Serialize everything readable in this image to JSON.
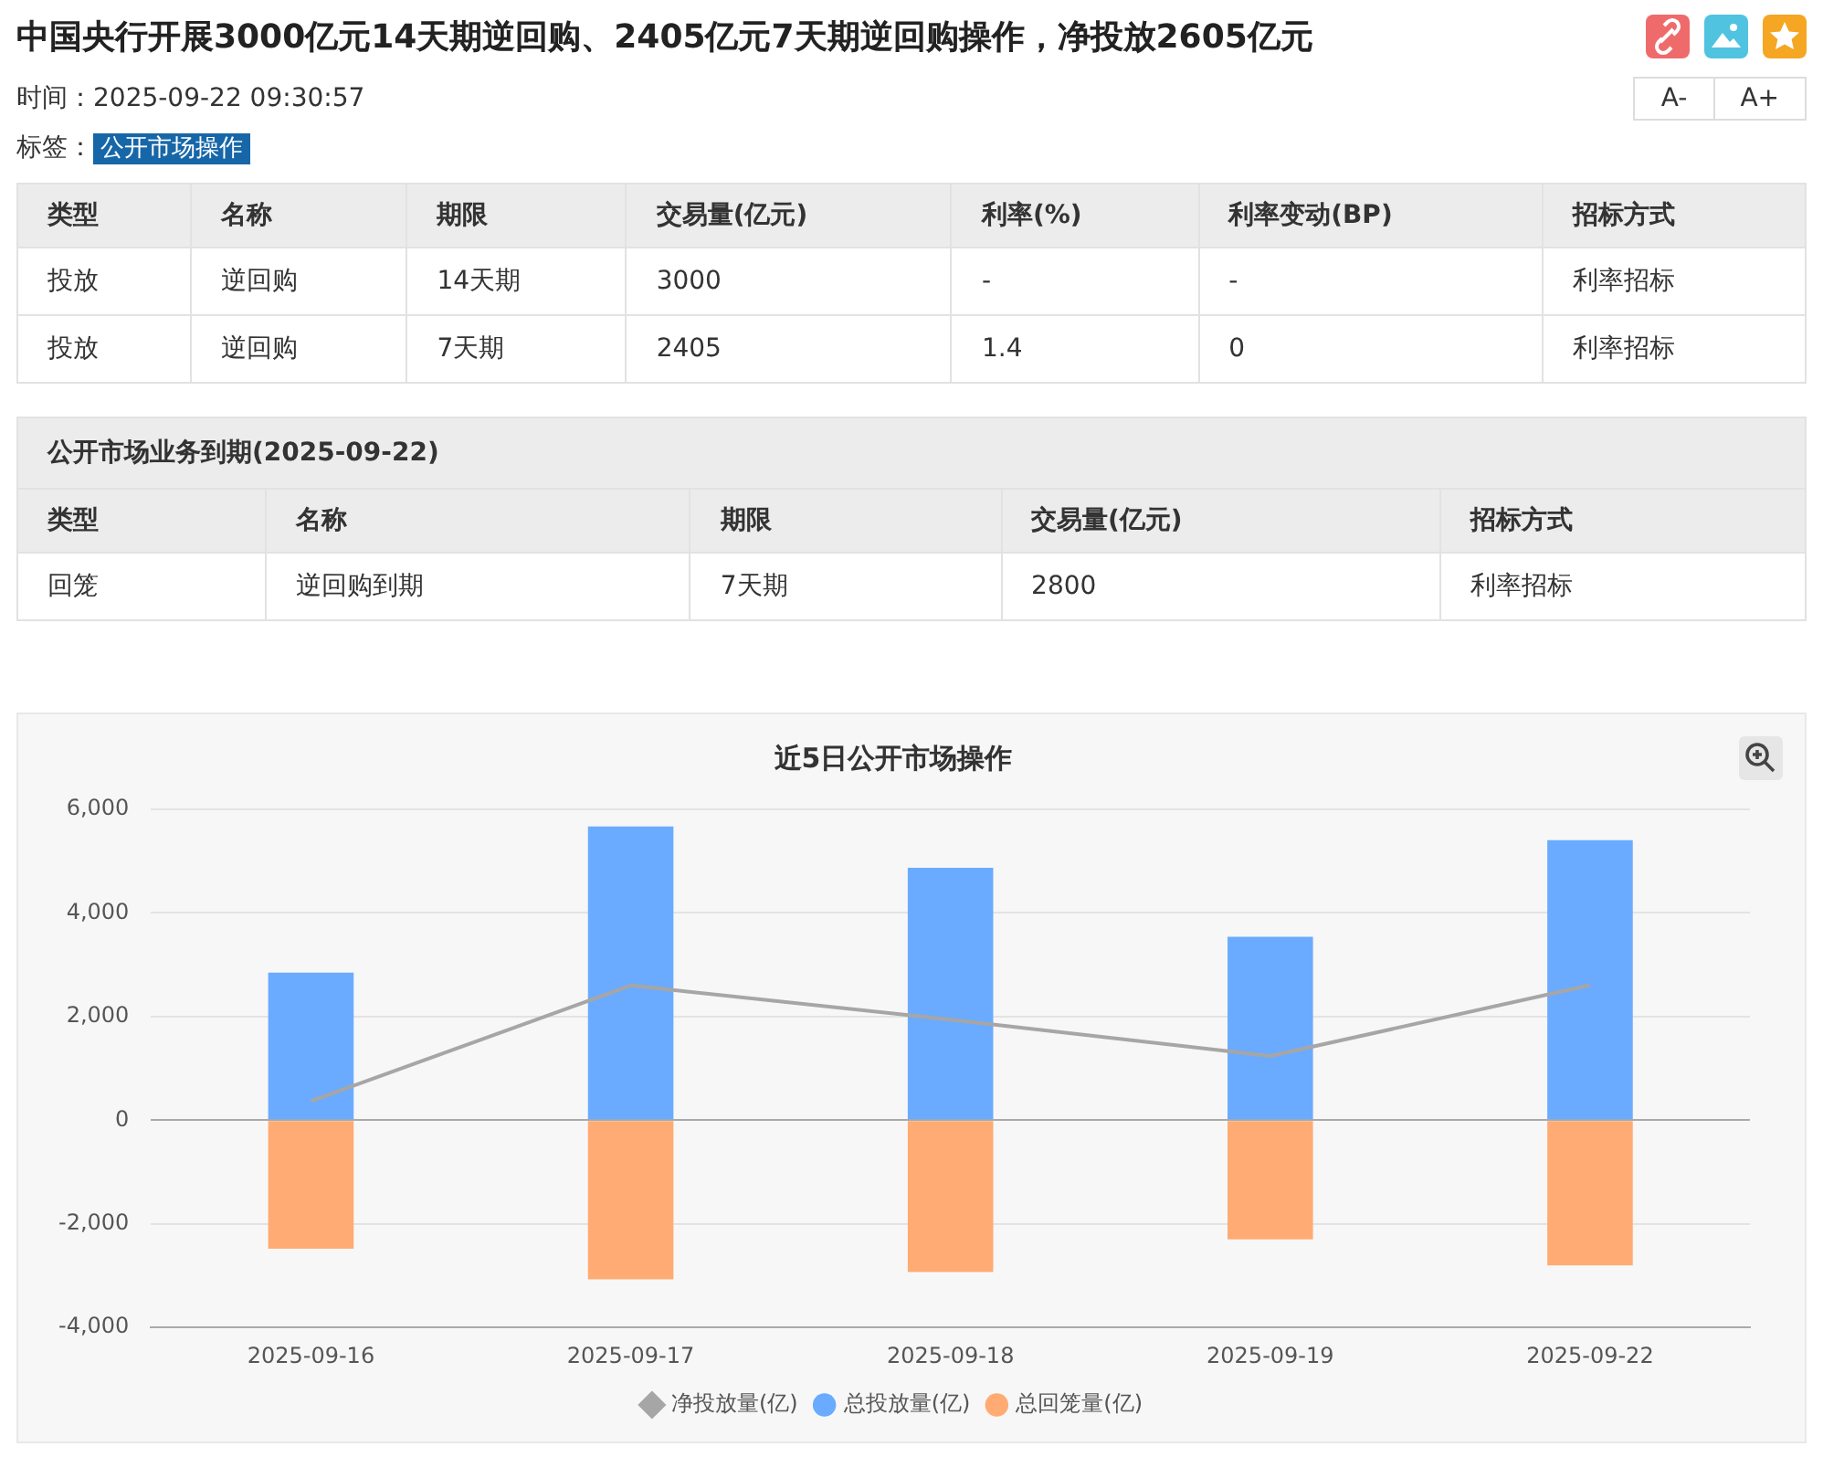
{
  "chart_data": [
    {
      "type": "other",
      "title": "中国央行开展3000亿元14天期逆回购、2405亿元7天期逆回购操作，净投放2605亿元",
      "annotations": [
        "时间：2025-09-22 09:30:57",
        "标签：",
        "公开市场操作",
        "A-",
        "A+",
        "类型",
        "名称",
        "期限",
        "交易量(亿元)",
        "利率(%)",
        "利率变动(BP)",
        "招标方式",
        "投放",
        "逆回购",
        "14天期",
        "3000",
        "-",
        "-",
        "利率招标",
        "投放",
        "逆回购",
        "7天期",
        "2405",
        "1.4",
        "0",
        "利率招标",
        "公开市场业务到期(2025-09-22)",
        "类型",
        "名称",
        "期限",
        "交易量(亿元)",
        "招标方式",
        "回笼",
        "逆回购到期",
        "7天期",
        "2800",
        "利率招标"
      ]
    },
    {
      "type": "bar",
      "title": "近5日公开市场操作",
      "categories": [
        "2025-09-16",
        "2025-09-17",
        "2025-09-18",
        "2025-09-19",
        "2025-09-22"
      ],
      "stacked": true,
      "series": [
        {
          "name": "总投放量(亿)",
          "color": "#6aabff",
          "values": [
            2850,
            5670,
            4870,
            3540,
            5405
          ]
        },
        {
          "name": "总回笼量(亿)",
          "color": "#ffab73",
          "values": [
            -2480,
            -3070,
            -2930,
            -2300,
            -2800
          ]
        },
        {
          "name": "净投放量(亿)",
          "type": "line",
          "color": "#a6a6a6",
          "values": [
            370,
            2600,
            1940,
            1240,
            2605
          ]
        }
      ],
      "ylim": [
        -4000,
        6000
      ],
      "yticks": [
        {
          "value": -4000,
          "label": "-4,000"
        },
        {
          "value": -2000,
          "label": "-2,000"
        },
        0,
        {
          "value": 2000,
          "label": "2,000"
        },
        {
          "value": 4000,
          "label": "4,000"
        },
        {
          "value": 6000,
          "label": "6,000"
        }
      ],
      "grid": "y",
      "legend": "bottom",
      "marker": "none"
    }
  ]
}
